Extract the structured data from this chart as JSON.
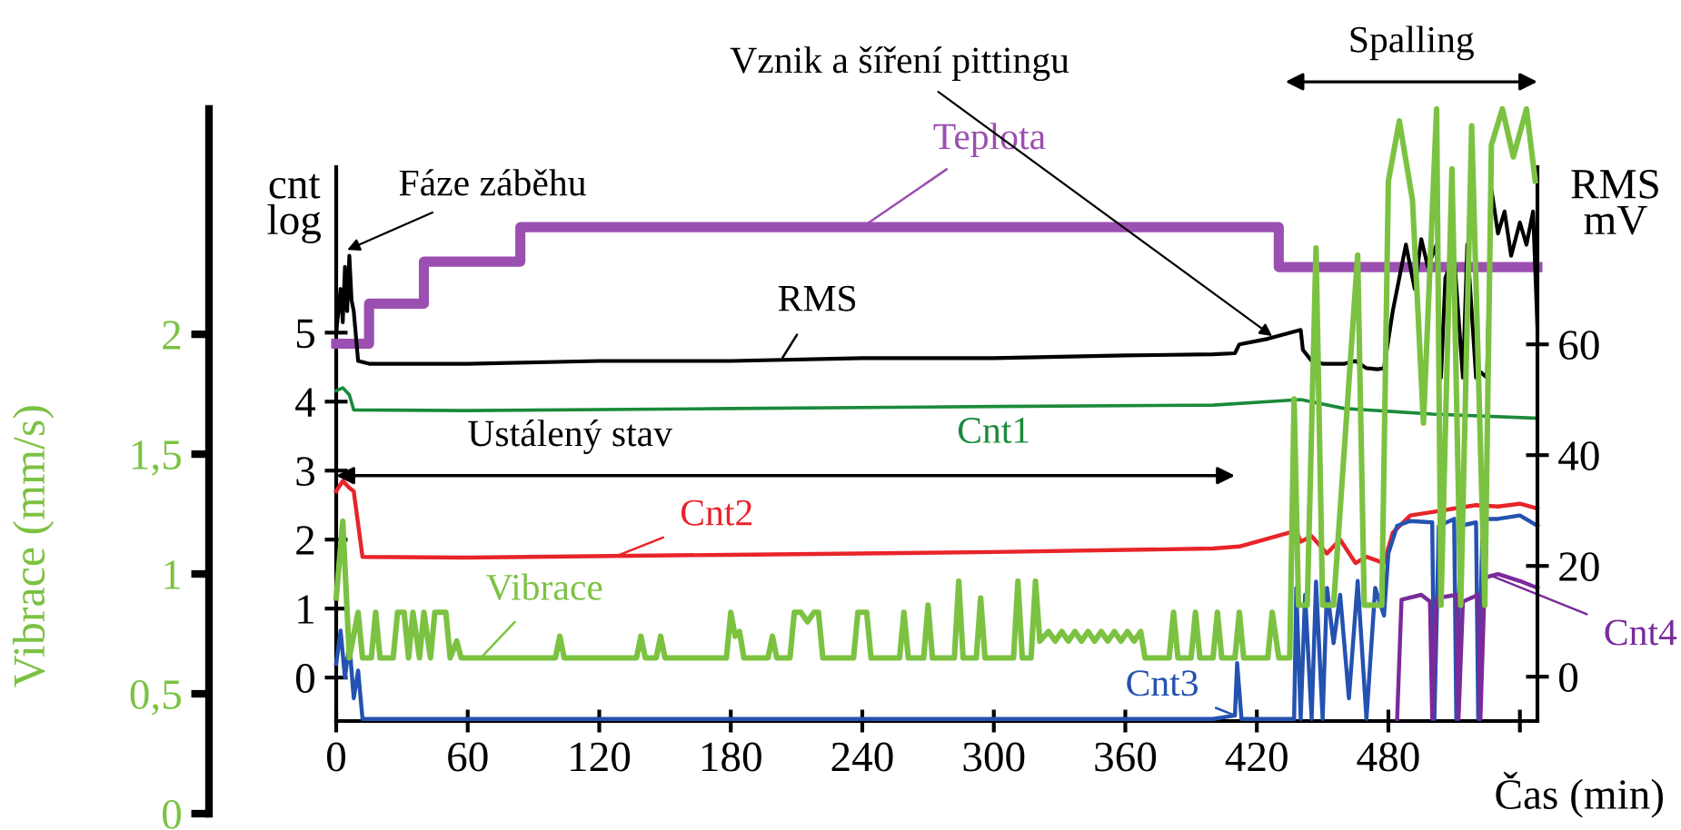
{
  "chart_data": {
    "type": "line",
    "xlabel": "Čas (min)",
    "ylabel": "cnt\nlog",
    "y2label": "RMS\nmV",
    "y3label": "Vibrace (mm/s)",
    "xlim": [
      0,
      548
    ],
    "xticks": [
      0,
      60,
      120,
      180,
      240,
      300,
      360,
      420,
      480,
      {
        "value": 540,
        "label": null
      }
    ],
    "ylim": [
      -0.63,
      7.4
    ],
    "yticks": [
      0,
      1,
      2,
      3,
      4,
      5
    ],
    "y2lim": [
      -8,
      92
    ],
    "y2ticks": [
      0,
      20,
      40,
      60
    ],
    "y3lim": [
      0,
      2.94
    ],
    "y3ticks": [
      0,
      {
        "value": 0.5,
        "label": "0,5"
      },
      1,
      {
        "value": 1.5,
        "label": "1,5"
      },
      2
    ],
    "grid": false,
    "legend": false,
    "series": [
      {
        "name": "Teplota",
        "color": "#9b4fb0",
        "axis": "y",
        "x": [
          0,
          15,
          15,
          40,
          40,
          84,
          84,
          430,
          430,
          548
        ],
        "values": [
          4.84,
          4.84,
          5.42,
          5.42,
          6.03,
          6.03,
          6.53,
          6.53,
          5.95,
          5.95
        ]
      },
      {
        "name": "RMS",
        "color": "#000000",
        "axis": "y2",
        "x": [
          0,
          2,
          3,
          4,
          5,
          6,
          7,
          8,
          10,
          15,
          60,
          120,
          180,
          240,
          300,
          360,
          400,
          410,
          412,
          425,
          440,
          441,
          445,
          450,
          460,
          465,
          470,
          475,
          478,
          482,
          485,
          488,
          492,
          495,
          498,
          502,
          504,
          506,
          510,
          514,
          516,
          520,
          522,
          525,
          527,
          530,
          533,
          536,
          540,
          543,
          546,
          548
        ],
        "values": [
          62,
          70,
          64,
          74,
          66,
          76,
          68,
          66,
          57,
          56.5,
          56.5,
          57,
          57,
          57.5,
          57.5,
          58,
          58.2,
          58.4,
          60,
          61,
          62.6,
          59,
          57,
          56.5,
          56.5,
          57,
          55.7,
          55.5,
          55.7,
          66,
          72,
          78,
          70,
          79,
          74,
          78,
          54,
          72,
          76,
          54,
          78,
          54,
          55,
          54,
          88,
          80,
          84,
          76,
          82,
          78,
          84,
          63
        ]
      },
      {
        "name": "Cnt1",
        "color": "#1a8a3a",
        "axis": "y",
        "x": [
          0,
          3,
          6,
          8,
          60,
          180,
          300,
          400,
          440,
          460,
          500,
          548
        ],
        "values": [
          4.16,
          4.2,
          4.1,
          3.88,
          3.87,
          3.9,
          3.93,
          3.95,
          4.03,
          3.9,
          3.82,
          3.76
        ]
      },
      {
        "name": "Cnt2",
        "color": "#e8242a",
        "axis": "y",
        "x": [
          0,
          3,
          6,
          8,
          12,
          60,
          180,
          300,
          400,
          412,
          438,
          440,
          445,
          452,
          458,
          465,
          470,
          478,
          482,
          490,
          500,
          510,
          520,
          530,
          540,
          548
        ],
        "values": [
          2.7,
          2.85,
          2.75,
          2.7,
          1.75,
          1.74,
          1.78,
          1.82,
          1.87,
          1.9,
          2.13,
          1.97,
          2.05,
          1.8,
          2.0,
          1.66,
          1.75,
          1.66,
          2.1,
          2.35,
          2.4,
          2.45,
          2.5,
          2.48,
          2.52,
          2.45
        ]
      },
      {
        "name": "Cnt3",
        "color": "#2452b0",
        "axis": "y",
        "x": [
          0,
          2,
          4,
          6,
          8,
          10,
          12,
          400,
          410,
          411,
          413,
          437,
          438,
          440,
          442,
          445,
          447,
          450,
          452,
          455,
          458,
          462,
          466,
          470,
          474,
          478,
          480,
          484,
          490,
          500,
          501,
          503,
          510,
          511,
          513,
          520,
          521,
          523,
          530,
          540,
          548
        ],
        "values": [
          0.2,
          0.68,
          0,
          0.5,
          -0.3,
          0.1,
          -0.6,
          -0.6,
          -0.55,
          0.21,
          -0.6,
          -0.6,
          1.3,
          -0.6,
          1.2,
          -0.6,
          1.39,
          -0.6,
          1.3,
          0.5,
          1.2,
          -0.3,
          1.4,
          -0.6,
          1.3,
          0.9,
          1.8,
          2.2,
          2.27,
          2.25,
          -0.6,
          2.2,
          2.3,
          -0.6,
          2.2,
          2.25,
          -0.6,
          2.3,
          2.3,
          2.35,
          2.2
        ]
      },
      {
        "name": "Cnt4",
        "color": "#7a2a9a",
        "axis": "y",
        "x": [
          484,
          486,
          495,
          499,
          500,
          502,
          511,
          512,
          514,
          521,
          522,
          524,
          530,
          540,
          548
        ],
        "values": [
          -0.6,
          1.13,
          1.2,
          1.1,
          -0.6,
          1.15,
          1.2,
          -0.6,
          1.1,
          1.2,
          -0.6,
          1.45,
          1.5,
          1.4,
          1.3
        ]
      },
      {
        "name": "Vibrace",
        "color": "#7cc242",
        "axis": "y3",
        "x": [
          0,
          3,
          6,
          10,
          12,
          16,
          18,
          20,
          26,
          28,
          31,
          33,
          35,
          38,
          40,
          43,
          45,
          50,
          52,
          55,
          57,
          100,
          102,
          104,
          137,
          139,
          141,
          146,
          148,
          150,
          178,
          180,
          182,
          184,
          186,
          197,
          199,
          201,
          207,
          209,
          212,
          215,
          218,
          220,
          222,
          236,
          238,
          242,
          244,
          257,
          259,
          261,
          268,
          270,
          272,
          282,
          284,
          286,
          292,
          294,
          296,
          309,
          311,
          313,
          317,
          319,
          321,
          325,
          328,
          331,
          334,
          337,
          340,
          343,
          346,
          349,
          352,
          355,
          358,
          361,
          364,
          367,
          369,
          380,
          382,
          384,
          390,
          392,
          394,
          400,
          402,
          404,
          410,
          412,
          414,
          425,
          427,
          430,
          435,
          437,
          439,
          443,
          447,
          450,
          455,
          466,
          469,
          477,
          480,
          485,
          491,
          496,
          502,
          504,
          509,
          513,
          518,
          524,
          527,
          532,
          537,
          543,
          547
        ],
        "values": [
          0.9,
          1.22,
          0.65,
          0.84,
          0.65,
          0.65,
          0.84,
          0.65,
          0.65,
          0.84,
          0.84,
          0.65,
          0.84,
          0.65,
          0.84,
          0.65,
          0.84,
          0.84,
          0.65,
          0.72,
          0.65,
          0.65,
          0.74,
          0.65,
          0.65,
          0.74,
          0.65,
          0.65,
          0.74,
          0.65,
          0.65,
          0.84,
          0.74,
          0.76,
          0.65,
          0.65,
          0.74,
          0.65,
          0.65,
          0.84,
          0.84,
          0.8,
          0.84,
          0.84,
          0.65,
          0.65,
          0.84,
          0.84,
          0.65,
          0.65,
          0.84,
          0.65,
          0.65,
          0.87,
          0.65,
          0.65,
          0.97,
          0.65,
          0.65,
          0.9,
          0.65,
          0.65,
          0.97,
          0.65,
          0.65,
          0.97,
          0.72,
          0.76,
          0.72,
          0.76,
          0.72,
          0.76,
          0.72,
          0.76,
          0.72,
          0.76,
          0.72,
          0.76,
          0.72,
          0.76,
          0.72,
          0.76,
          0.65,
          0.65,
          0.84,
          0.65,
          0.65,
          0.84,
          0.65,
          0.65,
          0.84,
          0.65,
          0.65,
          0.84,
          0.65,
          0.65,
          0.84,
          0.65,
          0.65,
          1.73,
          0.87,
          0.87,
          2.36,
          0.87,
          0.87,
          2.33,
          0.87,
          0.87,
          2.64,
          2.89,
          2.56,
          1.63,
          2.94,
          0.87,
          2.69,
          0.87,
          2.87,
          0.87,
          2.79,
          2.94,
          2.74,
          2.94,
          2.64
        ]
      }
    ],
    "annotations": [
      {
        "text": "Fáze záběhu",
        "x": 5,
        "y": 6.2
      },
      {
        "text": "Vznik a šíření pittingu",
        "x": 427,
        "y": 4.95
      },
      "Ustálený stav",
      "Spalling"
    ]
  }
}
